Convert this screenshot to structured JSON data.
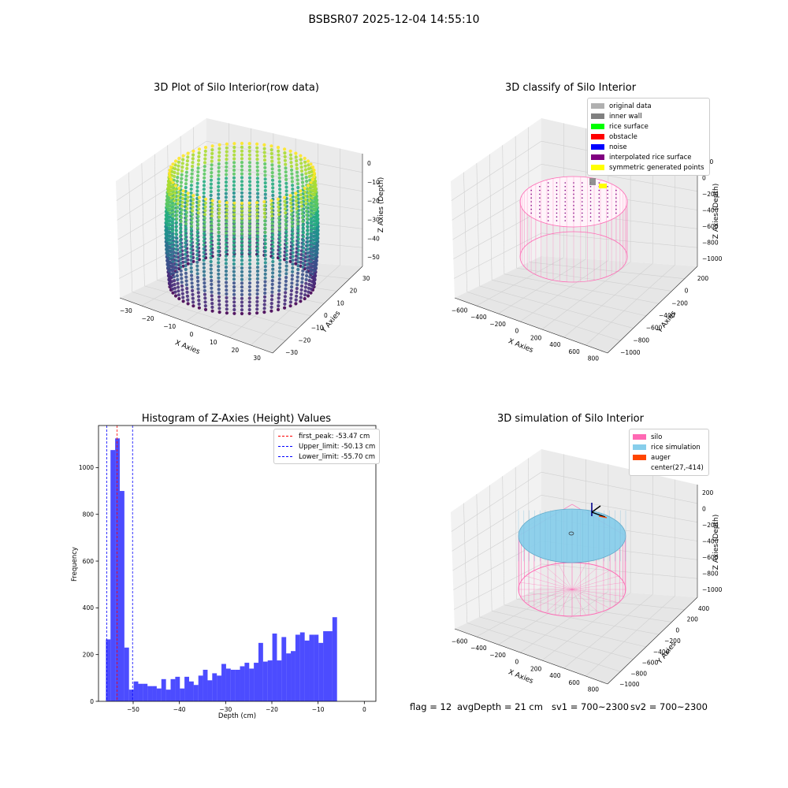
{
  "suptitle": "BSBSR07 2025-12-04 14:55:10",
  "chart_data": [
    {
      "type": "scatter",
      "title": "3D Plot of Silo Interior(row data)",
      "xlabel": "X Axies",
      "ylabel": "Y Axies",
      "zlabel": "Z Axies (Depth)",
      "xticks": [
        "−30",
        "−20",
        "−10",
        "0",
        "10",
        "20",
        "30"
      ],
      "yticks": [
        "−30",
        "−20",
        "−10",
        "0",
        "10",
        "20",
        "30"
      ],
      "zticks": [
        "0",
        "−10",
        "−20",
        "−30",
        "−40",
        "−50"
      ],
      "xlim": [
        -35,
        35
      ],
      "ylim": [
        -35,
        35
      ],
      "zlim": [
        -58,
        2
      ],
      "shape": "cylindrical wall of points, radius ~30, depth 0 to -55, colored by depth (viridis)",
      "colormap": "viridis",
      "grid": true
    },
    {
      "type": "scatter",
      "title": "3D classify of Silo Interior",
      "xlabel": "X Axies",
      "ylabel": "Y Axies",
      "zlabel": "Z Axies (Depth)",
      "xticks": [
        "−600",
        "−400",
        "−200",
        "0",
        "200",
        "400",
        "600",
        "800"
      ],
      "yticks": [
        "−1000",
        "−800",
        "−600",
        "−400",
        "−200",
        "0",
        "200"
      ],
      "zticks": [
        "200",
        "0",
        "−200",
        "−400",
        "−600",
        "−800",
        "−1000"
      ],
      "legend": [
        {
          "label": "original data",
          "color": "#b0b0b0"
        },
        {
          "label": "inner wall",
          "color": "#808080"
        },
        {
          "label": "rice surface",
          "color": "#00ff00"
        },
        {
          "label": "obstacle",
          "color": "#ff0000"
        },
        {
          "label": "noise",
          "color": "#0000ff"
        },
        {
          "label": "interpolated rice surface",
          "color": "#800080"
        },
        {
          "label": "symmetric generated points",
          "color": "#ffff00"
        }
      ],
      "legend_loc": "upper right",
      "grid": true
    },
    {
      "type": "bar",
      "title": "Histogram of Z-Axies (Height) Values",
      "xlabel": "Depth (cm)",
      "ylabel": "Frequency",
      "xlim": [
        -57.5,
        2.5
      ],
      "ylim": [
        0,
        1180
      ],
      "xticks": [
        -50,
        -40,
        -30,
        -20,
        -10,
        0
      ],
      "xtick_labels": [
        "−50",
        "−40",
        "−30",
        "−20",
        "−10",
        "0"
      ],
      "yticks": [
        0,
        200,
        400,
        600,
        800,
        1000
      ],
      "bar_color": "#0000ff",
      "bin_edges_start": -55.9,
      "bin_width": 1.0,
      "values": [
        265,
        1075,
        1125,
        900,
        230,
        50,
        85,
        75,
        75,
        65,
        65,
        55,
        95,
        50,
        95,
        105,
        55,
        105,
        85,
        70,
        110,
        135,
        90,
        120,
        110,
        160,
        140,
        135,
        135,
        150,
        165,
        140,
        165,
        250,
        170,
        175,
        290,
        175,
        275,
        205,
        215,
        285,
        295,
        260,
        285,
        285,
        250,
        300,
        300,
        360
      ],
      "vlines": [
        {
          "label": "first_peak: -53.47 cm",
          "x": -53.47,
          "color": "#ff0000"
        },
        {
          "label": "Upper_limit: -50.13 cm",
          "x": -50.13,
          "color": "#0000ff"
        },
        {
          "label": "Lower_limit: -55.70 cm",
          "x": -55.7,
          "color": "#0000ff"
        }
      ],
      "legend_loc": "upper right",
      "grid": false
    },
    {
      "type": "scatter",
      "title": "3D simulation of Silo Interior",
      "xlabel": "X Axies",
      "ylabel": "Y Axies",
      "zlabel": "Z Axies (Depth)",
      "xticks": [
        "−600",
        "−400",
        "−200",
        "0",
        "200",
        "400",
        "600",
        "800"
      ],
      "yticks": [
        "−1000",
        "−800",
        "−600",
        "−400",
        "−200",
        "0",
        "200",
        "400"
      ],
      "zticks": [
        "200",
        "0",
        "−200",
        "−400",
        "−600",
        "−800",
        "−1000"
      ],
      "legend": [
        {
          "label": "silo",
          "color": "#ff69b4"
        },
        {
          "label": "rice simulation",
          "color": "#87ceeb"
        },
        {
          "label": "auger",
          "color": "#ff4500"
        },
        {
          "label": "center(27,-414)",
          "color": ""
        }
      ],
      "legend_loc": "upper right",
      "grid": true
    }
  ],
  "footer": {
    "flag": "flag = 12",
    "avg_depth": "avgDepth = 21 cm",
    "sv1": "sv1 = 700~2300",
    "sv2": "sv2 = 700~2300"
  }
}
